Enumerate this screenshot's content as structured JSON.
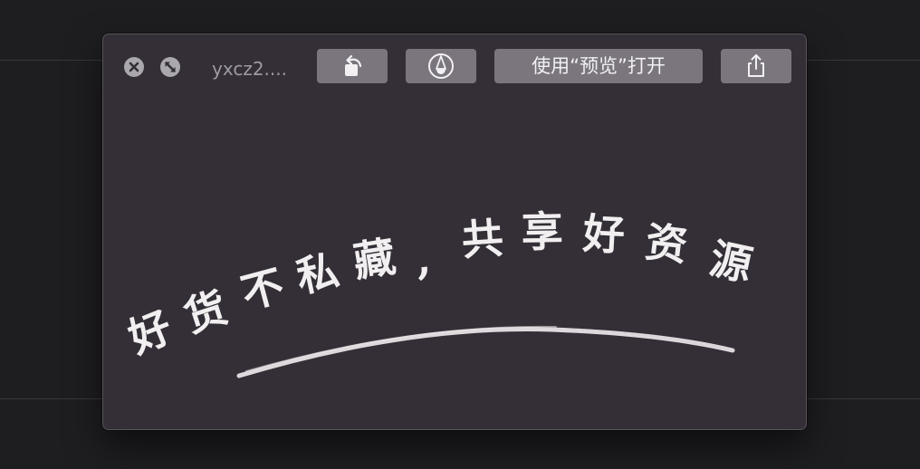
{
  "window": {
    "title": "yxcz2....",
    "toolbar": {
      "rotate_icon": "rotate-left-icon",
      "markup_icon": "markup-pen-icon",
      "open_with_preview_label": "使用“预览”打开",
      "share_icon": "share-icon"
    },
    "controls": {
      "close_icon": "close-icon",
      "fullscreen_icon": "fullscreen-icon"
    }
  },
  "content": {
    "slogan_chars": [
      "好",
      "货",
      "不",
      "私",
      "藏",
      ",",
      "共",
      "享",
      "好",
      "资",
      "源"
    ]
  },
  "colors": {
    "page_background": "#1e1d20",
    "window_background": "#342e36",
    "button_background": "#7b767e",
    "text_light": "#f1eff0",
    "title_gray": "#9d9aa1"
  }
}
